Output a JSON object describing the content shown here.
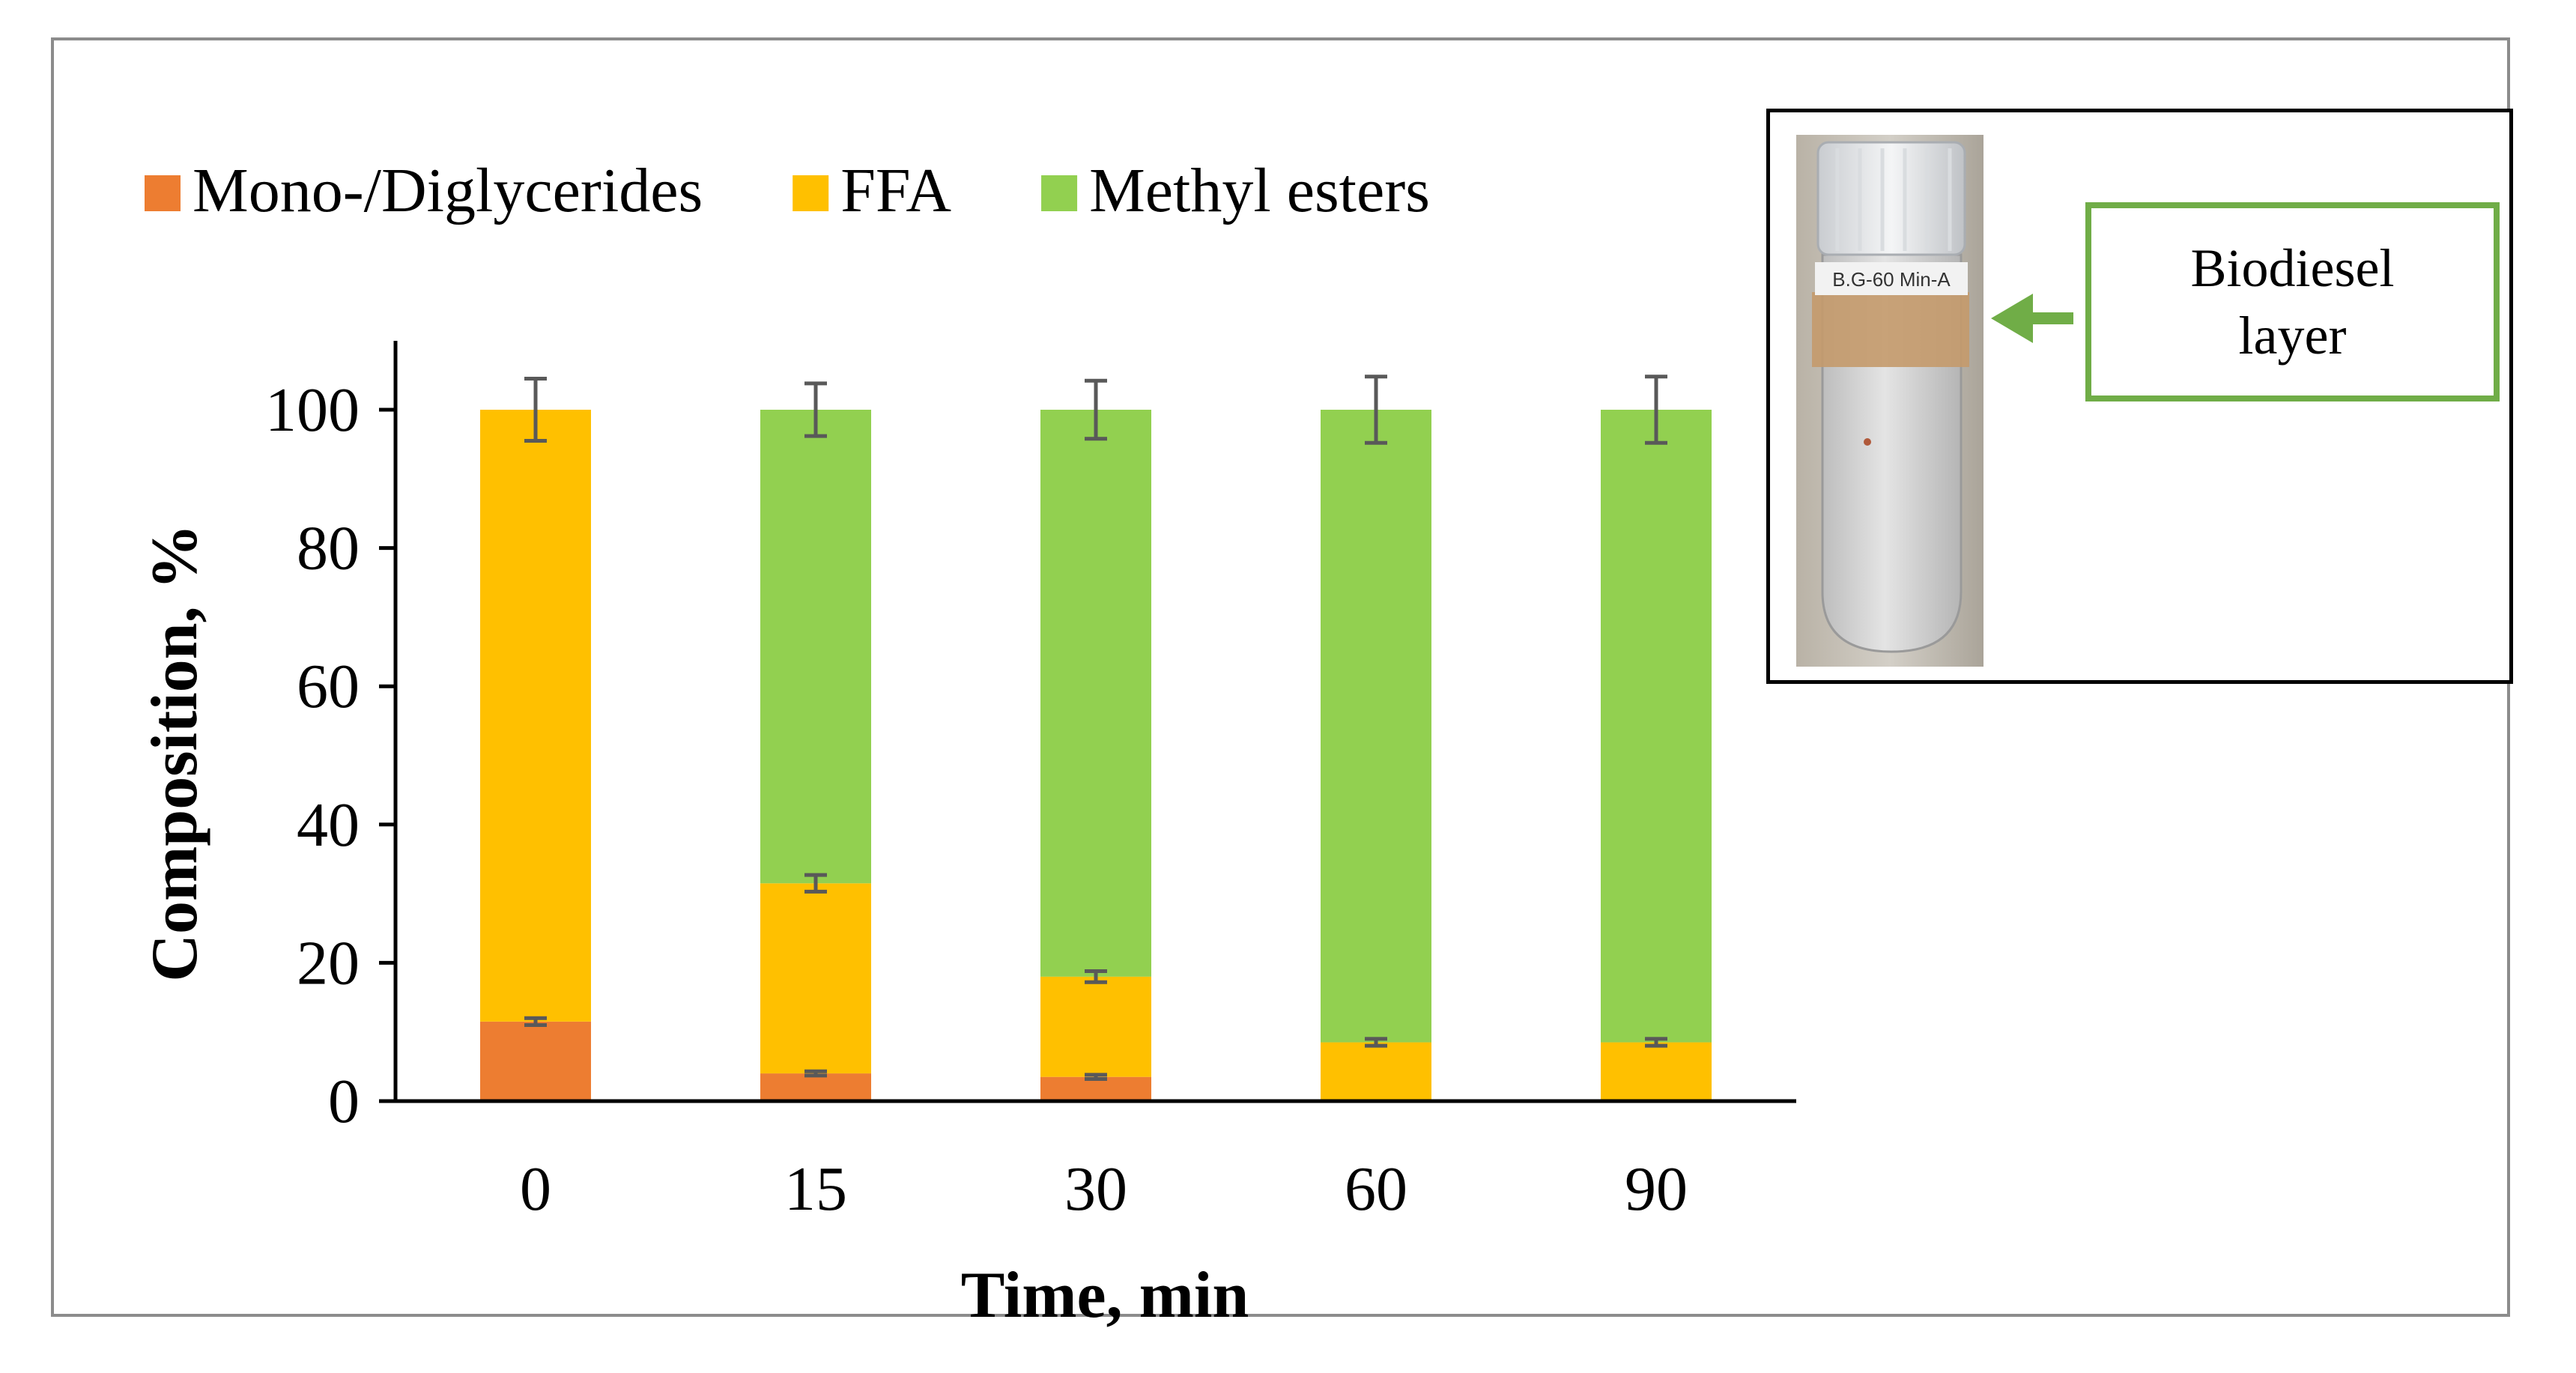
{
  "chart_data": {
    "type": "bar",
    "stacked": true,
    "xlabel": "Time, min",
    "ylabel": "Composition, %",
    "categories": [
      "0",
      "15",
      "30",
      "60",
      "90"
    ],
    "ylim": [
      0,
      110
    ],
    "yticks": [
      0,
      20,
      40,
      60,
      80,
      100
    ],
    "series": [
      {
        "name": "Mono-/Diglycerides",
        "color": "#ed7d31",
        "values": [
          11.5,
          4,
          3.5,
          0,
          0
        ],
        "errors": [
          0.5,
          0.3,
          0.3,
          0,
          0
        ]
      },
      {
        "name": "FFA",
        "color": "#ffc000",
        "values": [
          88.5,
          27.5,
          14.5,
          8.5,
          8.5
        ],
        "errors": [
          0,
          1.2,
          0.8,
          0.5,
          0.5
        ]
      },
      {
        "name": "Methyl esters",
        "color": "#92d050",
        "values": [
          0,
          68.5,
          82,
          91.5,
          91.5
        ],
        "errors": [
          4.5,
          3.8,
          4.2,
          4.8,
          4.8
        ]
      }
    ],
    "legend_position": "top"
  },
  "inset": {
    "vial_label": "B.G-60 Min-A",
    "callout_line1": "Biodiesel",
    "callout_line2": "layer",
    "arrow_color": "#70ad47"
  }
}
